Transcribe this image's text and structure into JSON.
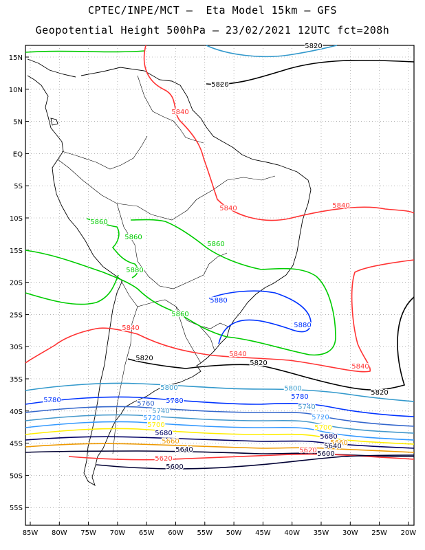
{
  "title_line1": "CPTEC/INPE/MCT –  Eta Model 15km – GFS",
  "title_line2": "Geopotential Height 500hPa – 23/02/2021 12UTC fct=208h",
  "lat_ticks": [
    "15N",
    "10N",
    "5N",
    "EQ",
    "5S",
    "10S",
    "15S",
    "20S",
    "25S",
    "30S",
    "35S",
    "40S",
    "45S",
    "50S",
    "55S"
  ],
  "lon_ticks": [
    "85W",
    "80W",
    "75W",
    "70W",
    "65W",
    "60W",
    "55W",
    "50W",
    "45W",
    "40W",
    "35W",
    "30W",
    "25W",
    "20W"
  ],
  "colors": {
    "c5880": "#00cc00",
    "c5860": "#0033ff",
    "c5840": "#ff3333",
    "c5820": "#000000",
    "c5800": "#3399cc",
    "c5780": "#0033ff",
    "c5760": "#3366cc",
    "c5740": "#4499cc",
    "c5720": "#3399ff",
    "c5700": "#ffee00",
    "c5680": "#000066",
    "c5660": "#ee9900",
    "c5640": "#000033",
    "c5620": "#ff3333",
    "c5600": "#000033"
  },
  "contour_labels": [
    {
      "text": "5860",
      "color": "c5880"
    },
    {
      "text": "5880",
      "color": "c5880"
    },
    {
      "text": "5860",
      "color": "c5880"
    },
    {
      "text": "5860",
      "color": "c5880"
    },
    {
      "text": "5860",
      "color": "c5880"
    },
    {
      "text": "5880",
      "color": "c5860"
    },
    {
      "text": "5880",
      "color": "c5860"
    },
    {
      "text": "5840",
      "color": "c5840"
    },
    {
      "text": "5840",
      "color": "c5840"
    },
    {
      "text": "5840",
      "color": "c5840"
    },
    {
      "text": "5840",
      "color": "c5840"
    },
    {
      "text": "5840",
      "color": "c5840"
    },
    {
      "text": "5840",
      "color": "c5840"
    },
    {
      "text": "5820",
      "color": "c5820"
    },
    {
      "text": "5820",
      "color": "c5820"
    },
    {
      "text": "5820",
      "color": "c5820"
    },
    {
      "text": "5820",
      "color": "c5820"
    },
    {
      "text": "5820",
      "color": "c5820"
    },
    {
      "text": "5800",
      "color": "c5800"
    },
    {
      "text": "5800",
      "color": "c5800"
    },
    {
      "text": "5780",
      "color": "c5780"
    },
    {
      "text": "5780",
      "color": "c5780"
    },
    {
      "text": "5780",
      "color": "c5780"
    },
    {
      "text": "5760",
      "color": "c5760"
    },
    {
      "text": "5740",
      "color": "c5740"
    },
    {
      "text": "5740",
      "color": "c5740"
    },
    {
      "text": "5720",
      "color": "c5720"
    },
    {
      "text": "5720",
      "color": "c5720"
    },
    {
      "text": "5700",
      "color": "c5700"
    },
    {
      "text": "5700",
      "color": "c5700"
    },
    {
      "text": "5680",
      "color": "c5680"
    },
    {
      "text": "5680",
      "color": "c5680"
    },
    {
      "text": "5660",
      "color": "c5660"
    },
    {
      "text": "5660",
      "color": "c5660"
    },
    {
      "text": "5640",
      "color": "c5640"
    },
    {
      "text": "5640",
      "color": "c5640"
    },
    {
      "text": "5620",
      "color": "c5620"
    },
    {
      "text": "5620",
      "color": "c5620"
    },
    {
      "text": "5600",
      "color": "c5600"
    },
    {
      "text": "5600",
      "color": "c5600"
    }
  ]
}
